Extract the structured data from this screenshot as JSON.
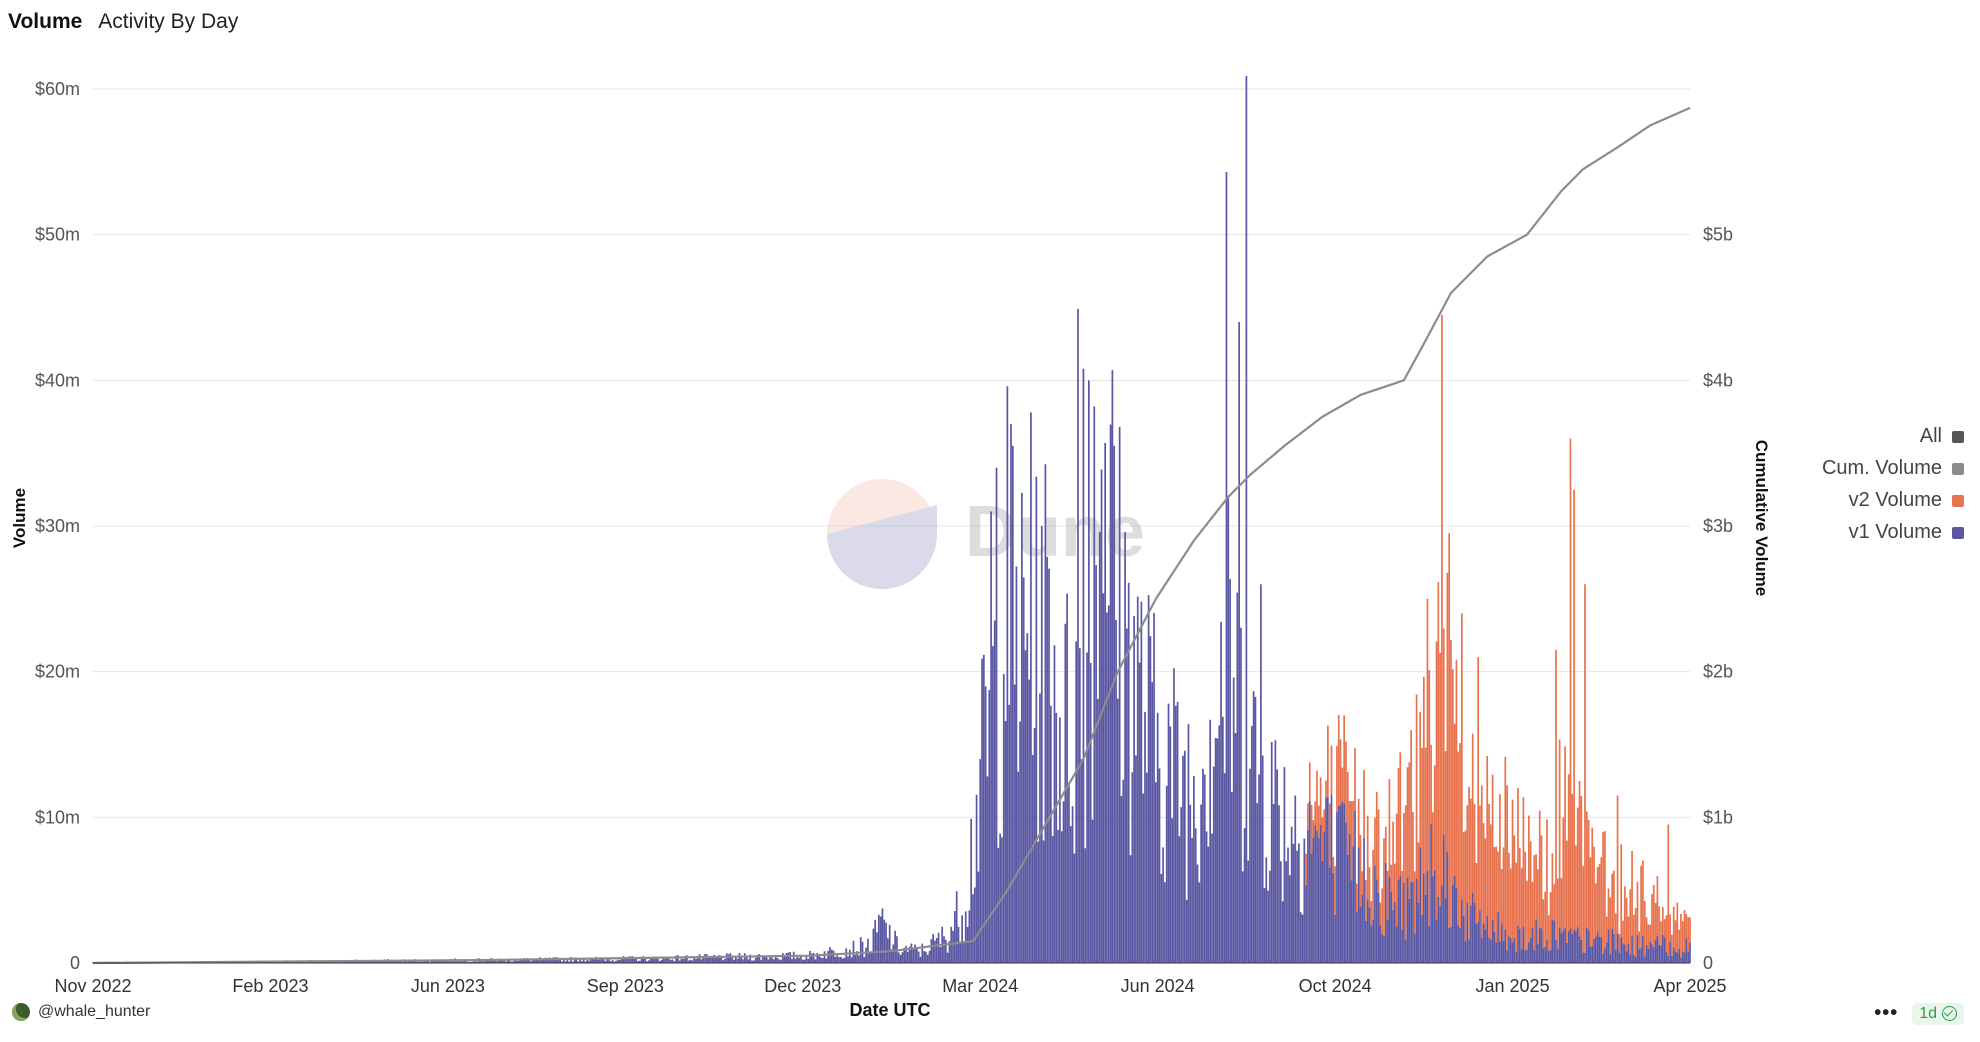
{
  "tabs": {
    "active": "Volume",
    "secondary": "Activity By Day"
  },
  "watermark": "Dune",
  "legend": {
    "items": [
      {
        "label": "All",
        "color": "#555555"
      },
      {
        "label": "Cum. Volume",
        "color": "#8c8c8c"
      },
      {
        "label": "v2 Volume",
        "color": "#e8734f"
      },
      {
        "label": "v1 Volume",
        "color": "#5b58a3"
      }
    ]
  },
  "footer": {
    "user": "@whale_hunter",
    "interval": "1d"
  },
  "chart_data": {
    "type": "bar",
    "xlabel": "Date UTC",
    "ylabel": "Volume",
    "y2label": "Cumulative Volume",
    "ylim": [
      0,
      60000000
    ],
    "y2lim": [
      0,
      6000000000
    ],
    "ytick_labels": [
      "0",
      "$10m",
      "$20m",
      "$30m",
      "$40m",
      "$50m",
      "$60m"
    ],
    "y2tick_labels": [
      "0",
      "$1b",
      "$2b",
      "$3b",
      "$4b",
      "$5b"
    ],
    "xtick_labels": [
      "Nov 2022",
      "Feb 2023",
      "Jun 2023",
      "Sep 2023",
      "Dec 2023",
      "Mar 2024",
      "Jun 2024",
      "Oct 2024",
      "Jan 2025",
      "Apr 2025"
    ],
    "x_range": [
      "2022-11-01",
      "2025-04-01"
    ],
    "grid": true,
    "legend_position": "right",
    "series": [
      {
        "name": "v1 Volume",
        "color": "#5b58a3",
        "kind": "bar-daily",
        "unit": "$m",
        "points": [
          [
            "2022-11-01",
            0.05
          ],
          [
            "2023-02-01",
            0.1
          ],
          [
            "2023-06-01",
            0.2
          ],
          [
            "2023-09-01",
            0.3
          ],
          [
            "2023-12-01",
            0.5
          ],
          [
            "2024-01-05",
            1.2
          ],
          [
            "2024-01-10",
            2.8
          ],
          [
            "2024-01-20",
            1.0
          ],
          [
            "2024-02-01",
            0.8
          ],
          [
            "2024-02-15",
            1.8
          ],
          [
            "2024-02-25",
            4.0
          ],
          [
            "2024-03-05",
            12.0
          ],
          [
            "2024-03-12",
            18.0
          ],
          [
            "2024-03-20",
            25.0
          ],
          [
            "2024-04-01",
            19.0
          ],
          [
            "2024-04-10",
            22.0
          ],
          [
            "2024-04-20",
            16.0
          ],
          [
            "2024-05-01",
            18.0
          ],
          [
            "2024-05-10",
            35.0
          ],
          [
            "2024-05-20",
            24.0
          ],
          [
            "2024-06-01",
            18.0
          ],
          [
            "2024-06-10",
            15.0
          ],
          [
            "2024-06-20",
            13.0
          ],
          [
            "2024-07-01",
            12.0
          ],
          [
            "2024-07-10",
            17.0
          ],
          [
            "2024-07-20",
            20.0
          ],
          [
            "2024-08-01",
            14.0
          ],
          [
            "2024-08-10",
            12.0
          ],
          [
            "2024-08-20",
            10.0
          ],
          [
            "2024-09-01",
            9.0
          ],
          [
            "2024-09-10",
            8.0
          ],
          [
            "2024-09-20",
            7.0
          ],
          [
            "2024-10-01",
            6.5
          ],
          [
            "2024-10-10",
            5.0
          ],
          [
            "2024-10-20",
            4.0
          ],
          [
            "2024-11-01",
            4.5
          ],
          [
            "2024-11-10",
            8.0
          ],
          [
            "2024-11-20",
            5.0
          ],
          [
            "2024-12-01",
            3.0
          ],
          [
            "2024-12-10",
            2.5
          ],
          [
            "2024-12-20",
            2.0
          ],
          [
            "2025-01-01",
            1.8
          ],
          [
            "2025-01-15",
            2.0
          ],
          [
            "2025-02-01",
            1.5
          ],
          [
            "2025-02-15",
            1.5
          ],
          [
            "2025-03-01",
            1.2
          ],
          [
            "2025-03-15",
            1.2
          ],
          [
            "2025-04-01",
            1.0
          ]
        ],
        "spikes": [
          [
            "2024-03-11",
            31.0
          ],
          [
            "2024-03-14",
            34.0
          ],
          [
            "2024-04-02",
            37.8
          ],
          [
            "2024-04-08",
            30.0
          ],
          [
            "2024-04-28",
            44.9
          ],
          [
            "2024-05-01",
            40.8
          ],
          [
            "2024-05-04",
            40.0
          ],
          [
            "2024-05-13",
            35.7
          ],
          [
            "2024-05-18",
            35.5
          ],
          [
            "2024-07-19",
            54.3
          ],
          [
            "2024-07-26",
            44.0
          ],
          [
            "2024-07-30",
            60.9
          ],
          [
            "2024-08-07",
            26.0
          ]
        ]
      },
      {
        "name": "v2 Volume",
        "color": "#e8734f",
        "kind": "bar-daily-stacked",
        "unit": "$m",
        "points": [
          [
            "2024-09-01",
            2.0
          ],
          [
            "2024-09-20",
            4.0
          ],
          [
            "2024-10-01",
            3.5
          ],
          [
            "2024-10-20",
            4.5
          ],
          [
            "2024-11-01",
            8.0
          ],
          [
            "2024-11-10",
            14.0
          ],
          [
            "2024-11-20",
            12.0
          ],
          [
            "2024-12-01",
            7.0
          ],
          [
            "2024-12-10",
            6.5
          ],
          [
            "2024-12-20",
            7.0
          ],
          [
            "2025-01-01",
            5.5
          ],
          [
            "2025-01-15",
            8.0
          ],
          [
            "2025-02-01",
            6.5
          ],
          [
            "2025-02-15",
            4.5
          ],
          [
            "2025-03-01",
            3.5
          ],
          [
            "2025-03-15",
            3.0
          ],
          [
            "2025-04-01",
            1.8
          ]
        ],
        "spikes": [
          [
            "2024-09-22",
            17.0
          ],
          [
            "2024-11-07",
            25.0
          ],
          [
            "2024-11-15",
            44.5
          ],
          [
            "2024-11-19",
            29.5
          ],
          [
            "2024-11-26",
            24.0
          ],
          [
            "2024-12-05",
            21.0
          ],
          [
            "2025-01-17",
            21.5
          ],
          [
            "2025-01-25",
            36.0
          ],
          [
            "2025-01-27",
            32.5
          ],
          [
            "2025-02-02",
            26.0
          ],
          [
            "2025-02-20",
            11.5
          ],
          [
            "2025-03-20",
            9.5
          ]
        ]
      },
      {
        "name": "Cum. Volume",
        "color": "#8c8c8c",
        "kind": "line",
        "axis": "right",
        "unit": "$b",
        "points": [
          [
            "2022-11-01",
            0.0
          ],
          [
            "2023-06-01",
            0.02
          ],
          [
            "2023-12-01",
            0.05
          ],
          [
            "2024-01-15",
            0.08
          ],
          [
            "2024-03-01",
            0.15
          ],
          [
            "2024-03-20",
            0.5
          ],
          [
            "2024-04-10",
            0.95
          ],
          [
            "2024-05-01",
            1.4
          ],
          [
            "2024-05-20",
            2.0
          ],
          [
            "2024-06-10",
            2.5
          ],
          [
            "2024-07-01",
            2.9
          ],
          [
            "2024-07-20",
            3.2
          ],
          [
            "2024-08-01",
            3.35
          ],
          [
            "2024-08-20",
            3.55
          ],
          [
            "2024-09-10",
            3.75
          ],
          [
            "2024-10-01",
            3.9
          ],
          [
            "2024-10-25",
            4.0
          ],
          [
            "2024-11-05",
            4.25
          ],
          [
            "2024-11-20",
            4.6
          ],
          [
            "2024-12-10",
            4.85
          ],
          [
            "2025-01-01",
            5.0
          ],
          [
            "2025-01-20",
            5.3
          ],
          [
            "2025-02-01",
            5.45
          ],
          [
            "2025-02-20",
            5.6
          ],
          [
            "2025-03-10",
            5.75
          ],
          [
            "2025-04-01",
            5.87
          ]
        ]
      }
    ]
  }
}
